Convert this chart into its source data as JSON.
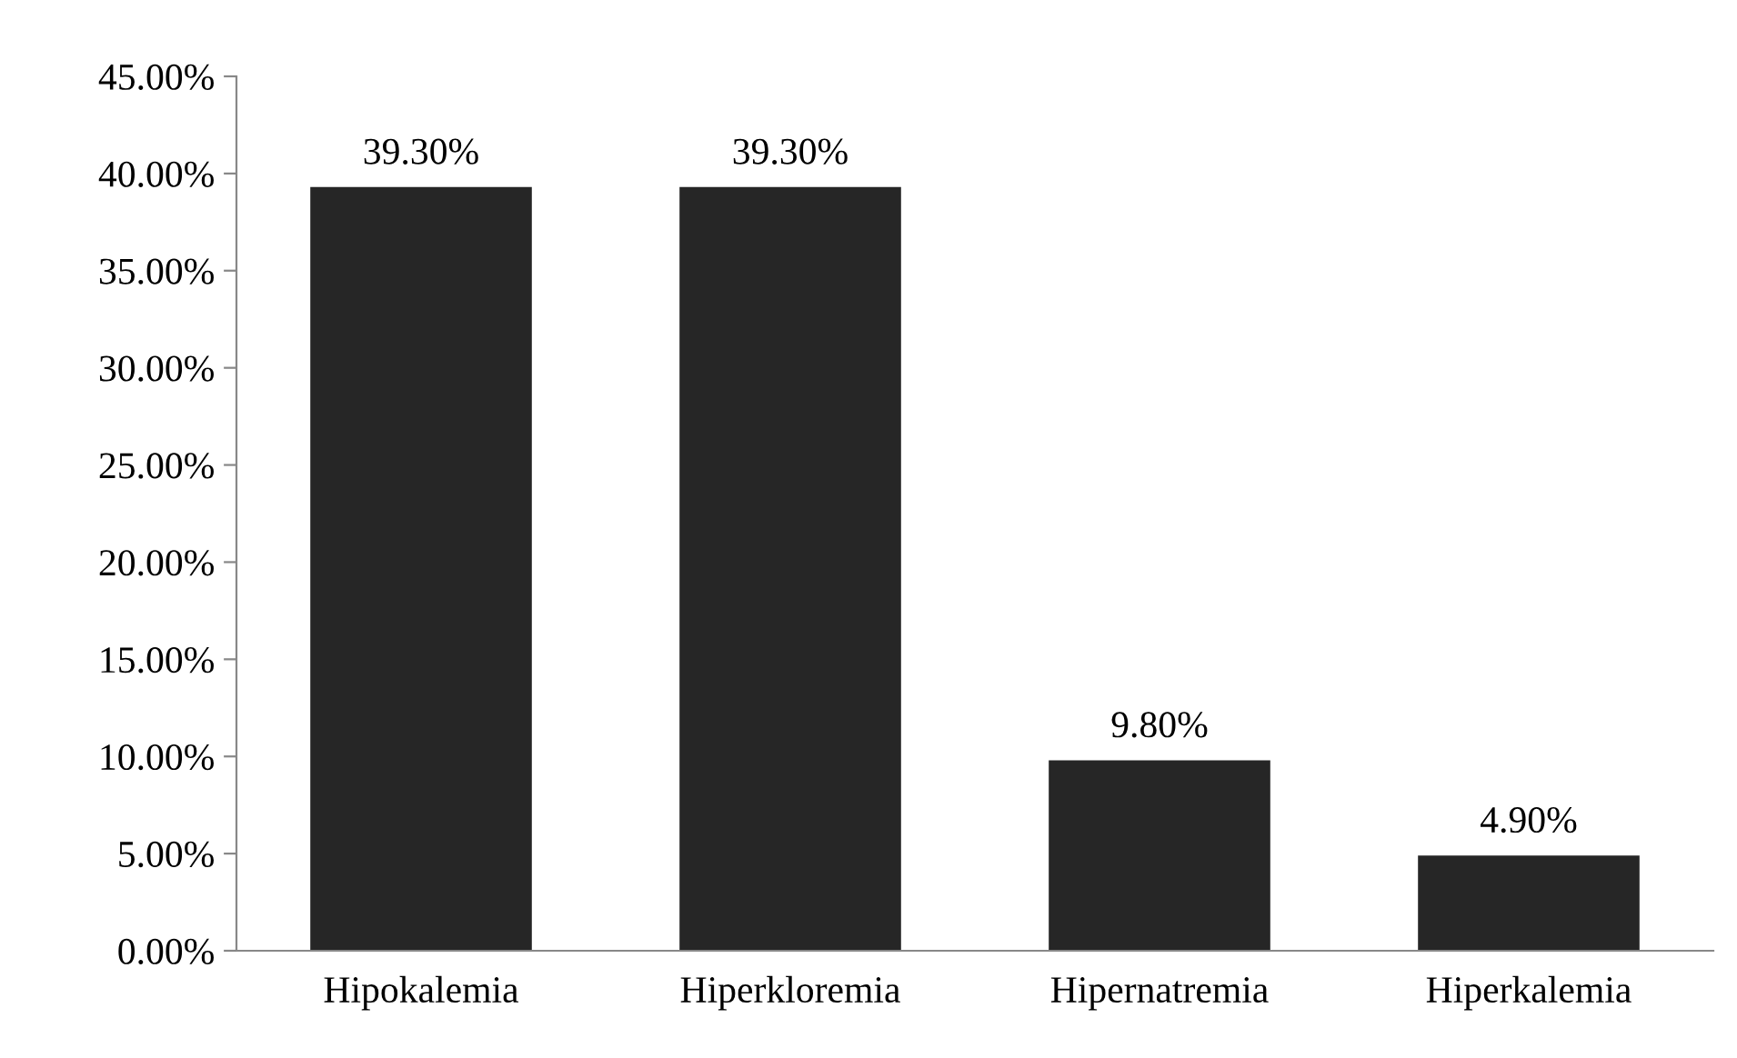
{
  "chart_data": {
    "type": "bar",
    "categories": [
      "Hipokalemia",
      "Hiperkloremia",
      "Hipernatremia",
      "Hiperkalemia"
    ],
    "values": [
      39.3,
      39.3,
      9.8,
      4.9
    ],
    "value_labels": [
      "39.30%",
      "39.30%",
      "9.80%",
      "4.90%"
    ],
    "color": "#262626",
    "ylim": [
      0,
      45
    ],
    "yticks": [
      {
        "value": 0,
        "label": "0.00%"
      },
      {
        "value": 5,
        "label": "5.00%"
      },
      {
        "value": 10,
        "label": "10.00%"
      },
      {
        "value": 15,
        "label": "15.00%"
      },
      {
        "value": 20,
        "label": "20.00%"
      },
      {
        "value": 25,
        "label": "25.00%"
      },
      {
        "value": 30,
        "label": "30.00%"
      },
      {
        "value": 35,
        "label": "35.00%"
      },
      {
        "value": 40,
        "label": "40.00%"
      },
      {
        "value": 45,
        "label": "45.00%"
      }
    ],
    "grid": false,
    "legend": false
  }
}
